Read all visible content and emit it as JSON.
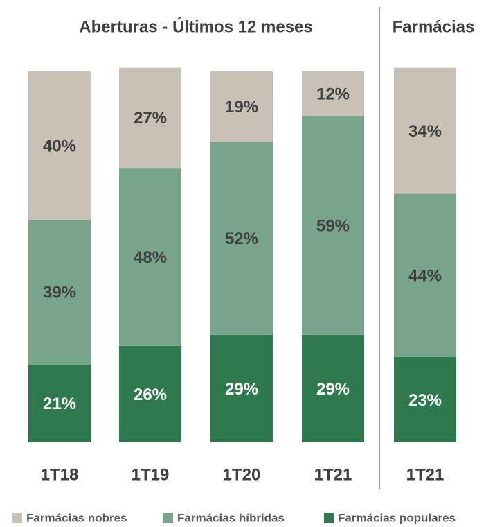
{
  "chart_data": [
    {
      "type": "stacked_bar",
      "title": "Aberturas - Últimos 12 meses",
      "categories": [
        "1T18",
        "1T19",
        "1T20",
        "1T21"
      ],
      "series": [
        {
          "name": "Farmácias populares",
          "color": "#2e7a4e",
          "values": [
            21,
            26,
            29,
            29
          ],
          "value_labels": [
            "21%",
            "26%",
            "29%",
            "29%"
          ]
        },
        {
          "name": "Farmácias híbridas",
          "color": "#78a48c",
          "values": [
            39,
            48,
            52,
            59
          ],
          "value_labels": [
            "39%",
            "48%",
            "52%",
            "59%"
          ]
        },
        {
          "name": "Farmácias nobres",
          "color": "#c9c0b6",
          "values": [
            40,
            27,
            19,
            12
          ],
          "value_labels": [
            "40%",
            "27%",
            "19%",
            "12%"
          ]
        }
      ]
    },
    {
      "type": "stacked_bar",
      "title": "Farmácias",
      "categories": [
        "1T21"
      ],
      "series": [
        {
          "color": "#2e7a4e",
          "values": [
            23
          ],
          "value_labels": [
            "23%"
          ]
        },
        {
          "color": "#78a48c",
          "values": [
            44
          ],
          "value_labels": [
            "44%"
          ]
        },
        {
          "color": "#c9c0b6",
          "values": [
            34
          ],
          "value_labels": [
            "34%"
          ]
        }
      ]
    }
  ]
}
